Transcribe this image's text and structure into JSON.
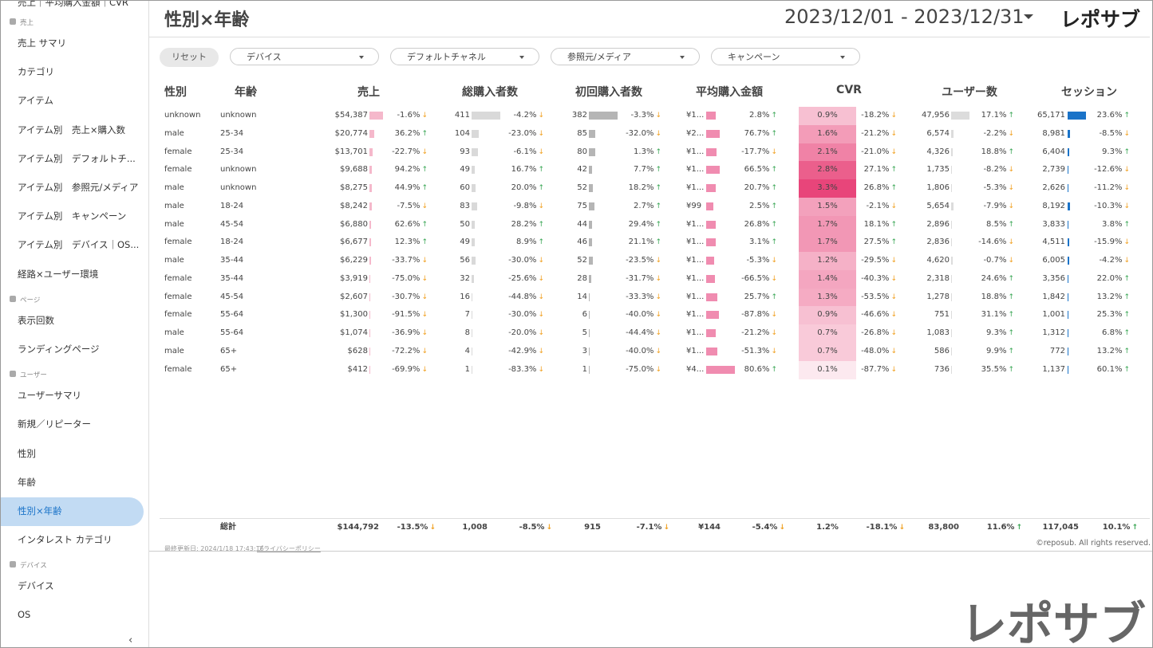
{
  "sidebar": {
    "top_item": "売上｜平均購入金額｜CVR",
    "sections": [
      {
        "title": "売上",
        "items": [
          "売上 サマリ",
          "カテゴリ",
          "アイテム",
          "アイテム別　売上×購入数",
          "アイテム別　デフォルトチ...",
          "アイテム別　参照元/メディア",
          "アイテム別　キャンペーン",
          "アイテム別　デバイス｜OS...",
          "経路×ユーザー環境"
        ]
      },
      {
        "title": "ページ",
        "items": [
          "表示回数",
          "ランディングページ"
        ]
      },
      {
        "title": "ユーザー",
        "items": [
          "ユーザーサマリ",
          "新規／リピーター",
          "性別",
          "年齢",
          "性別×年齢",
          "インタレスト カテゴリ"
        ]
      },
      {
        "title": "デバイス",
        "items": [
          "デバイス",
          "OS"
        ]
      }
    ]
  },
  "header": {
    "title": "性別×年齢",
    "date_range": "2023/12/01 - 2023/12/31",
    "logo": "レポサブ"
  },
  "filters": {
    "reset": "リセット",
    "dropdowns": [
      "デバイス",
      "デフォルトチャネル",
      "参照元/メディア",
      "キャンペーン"
    ]
  },
  "table": {
    "headers": [
      "性別",
      "年齢",
      "売上",
      "総購入者数",
      "初回購入者数",
      "平均購入金額",
      "CVR",
      "ユーザー数",
      "セッション"
    ],
    "rows": [
      [
        "unknown",
        "unknown",
        "$54,387",
        "-1.6%",
        "411",
        "-4.2%",
        "382",
        "-3.3%",
        "¥1...",
        "2.8%",
        "0.9%",
        "-18.2%",
        "47,956",
        "17.1%",
        "65,171",
        "23.6%"
      ],
      [
        "male",
        "25-34",
        "$20,774",
        "36.2%",
        "104",
        "-23.0%",
        "85",
        "-32.0%",
        "¥2...",
        "76.7%",
        "1.6%",
        "-21.2%",
        "6,574",
        "-2.2%",
        "8,981",
        "-8.5%"
      ],
      [
        "female",
        "25-34",
        "$13,701",
        "-22.7%",
        "93",
        "-6.1%",
        "80",
        "1.3%",
        "¥1...",
        "-17.7%",
        "2.1%",
        "-21.0%",
        "4,326",
        "18.8%",
        "6,404",
        "9.3%"
      ],
      [
        "female",
        "unknown",
        "$9,688",
        "94.2%",
        "49",
        "16.7%",
        "42",
        "7.7%",
        "¥1...",
        "66.5%",
        "2.8%",
        "27.1%",
        "1,735",
        "-8.2%",
        "2,739",
        "-12.6%"
      ],
      [
        "male",
        "unknown",
        "$8,275",
        "44.9%",
        "60",
        "20.0%",
        "52",
        "18.2%",
        "¥1...",
        "20.7%",
        "3.3%",
        "26.8%",
        "1,806",
        "-5.3%",
        "2,626",
        "-11.2%"
      ],
      [
        "male",
        "18-24",
        "$8,242",
        "-7.5%",
        "83",
        "-9.8%",
        "75",
        "2.7%",
        "¥99",
        "2.5%",
        "1.5%",
        "-2.1%",
        "5,654",
        "-7.9%",
        "8,192",
        "-10.3%"
      ],
      [
        "male",
        "45-54",
        "$6,880",
        "62.6%",
        "50",
        "28.2%",
        "44",
        "29.4%",
        "¥1...",
        "26.8%",
        "1.7%",
        "18.1%",
        "2,896",
        "8.5%",
        "3,833",
        "3.8%"
      ],
      [
        "female",
        "18-24",
        "$6,677",
        "12.3%",
        "49",
        "8.9%",
        "46",
        "21.1%",
        "¥1...",
        "3.1%",
        "1.7%",
        "27.5%",
        "2,836",
        "-14.6%",
        "4,511",
        "-15.9%"
      ],
      [
        "male",
        "35-44",
        "$6,229",
        "-33.7%",
        "56",
        "-30.0%",
        "52",
        "-23.5%",
        "¥1...",
        "-5.3%",
        "1.2%",
        "-29.5%",
        "4,620",
        "-0.7%",
        "6,005",
        "-4.2%"
      ],
      [
        "female",
        "35-44",
        "$3,919",
        "-75.0%",
        "32",
        "-25.6%",
        "28",
        "-31.7%",
        "¥1...",
        "-66.5%",
        "1.4%",
        "-40.3%",
        "2,318",
        "24.6%",
        "3,356",
        "22.0%"
      ],
      [
        "female",
        "45-54",
        "$2,607",
        "-30.7%",
        "16",
        "-44.8%",
        "14",
        "-33.3%",
        "¥1...",
        "25.7%",
        "1.3%",
        "-53.5%",
        "1,278",
        "18.8%",
        "1,842",
        "13.2%"
      ],
      [
        "female",
        "55-64",
        "$1,300",
        "-91.5%",
        "7",
        "-30.0%",
        "6",
        "-40.0%",
        "¥1...",
        "-87.8%",
        "0.9%",
        "-46.6%",
        "751",
        "31.1%",
        "1,001",
        "25.3%"
      ],
      [
        "male",
        "55-64",
        "$1,074",
        "-36.9%",
        "8",
        "-20.0%",
        "5",
        "-44.4%",
        "¥1...",
        "-21.2%",
        "0.7%",
        "-26.8%",
        "1,083",
        "9.3%",
        "1,312",
        "6.8%"
      ],
      [
        "male",
        "65+",
        "$628",
        "-72.2%",
        "4",
        "-42.9%",
        "3",
        "-40.0%",
        "¥1...",
        "-51.3%",
        "0.7%",
        "-48.0%",
        "586",
        "9.9%",
        "772",
        "13.2%"
      ],
      [
        "female",
        "65+",
        "$412",
        "-69.9%",
        "1",
        "-83.3%",
        "1",
        "-75.0%",
        "¥4...",
        "80.6%",
        "0.1%",
        "-87.7%",
        "736",
        "35.5%",
        "1,137",
        "60.1%"
      ]
    ],
    "total": {
      "label": "総計",
      "values": [
        "$144,792",
        "-13.5%",
        "1,008",
        "-8.5%",
        "915",
        "-7.1%",
        "¥144",
        "-5.4%",
        "1.2%",
        "-18.1%",
        "83,800",
        "11.6%",
        "117,045",
        "10.1%"
      ]
    }
  },
  "footer": {
    "updated": "最終更新日: 2024/1/18 17:43:16",
    "privacy": "プライバシーポリシー",
    "copyright": "©reposub. All rights reserved.",
    "logo": "レポサブ"
  }
}
